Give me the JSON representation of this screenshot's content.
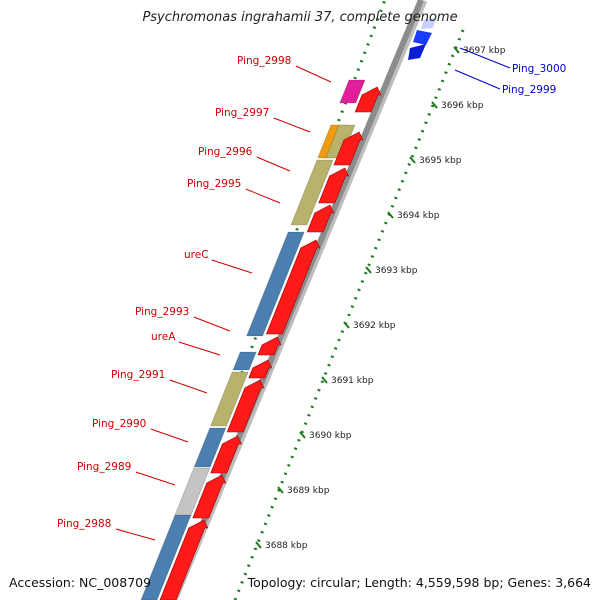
{
  "title": "Psychromonas ingrahamii 37, complete genome",
  "accession": "Accession: NC_008709",
  "topology": "Topology: circular; Length: 4,559,598 bp; Genes: 3,664",
  "colors": {
    "backbone": "#8c8c8c",
    "forward_cds": "#ff1a1a",
    "reverse_red_label": "#cc0000",
    "reverse_blue_label": "#0000cc",
    "tick": "#1f7a1f",
    "cog_blue": "#4a7fb0",
    "cog_khaki": "#b9b26a",
    "cog_gray": "#c4c4c4",
    "cog_magenta": "#e0209a",
    "cog_orange": "#f09a10"
  },
  "ticks": [
    {
      "label": "3688 kbp"
    },
    {
      "label": "3689 kbp"
    },
    {
      "label": "3690 kbp"
    },
    {
      "label": "3691 kbp"
    },
    {
      "label": "3692 kbp"
    },
    {
      "label": "3693 kbp"
    },
    {
      "label": "3694 kbp"
    },
    {
      "label": "3695 kbp"
    },
    {
      "label": "3696 kbp"
    },
    {
      "label": "3697 kbp"
    }
  ],
  "gene_labels": [
    {
      "name": "Ping_2988",
      "color": "red"
    },
    {
      "name": "Ping_2989",
      "color": "red"
    },
    {
      "name": "Ping_2990",
      "color": "red"
    },
    {
      "name": "Ping_2991",
      "color": "red"
    },
    {
      "name": "ureA",
      "color": "red"
    },
    {
      "name": "Ping_2993",
      "color": "red"
    },
    {
      "name": "ureC",
      "color": "red"
    },
    {
      "name": "Ping_2995",
      "color": "red"
    },
    {
      "name": "Ping_2996",
      "color": "red"
    },
    {
      "name": "Ping_2997",
      "color": "red"
    },
    {
      "name": "Ping_2998",
      "color": "red"
    },
    {
      "name": "Ping_2999",
      "color": "blue"
    },
    {
      "name": "Ping_3000",
      "color": "blue"
    }
  ]
}
